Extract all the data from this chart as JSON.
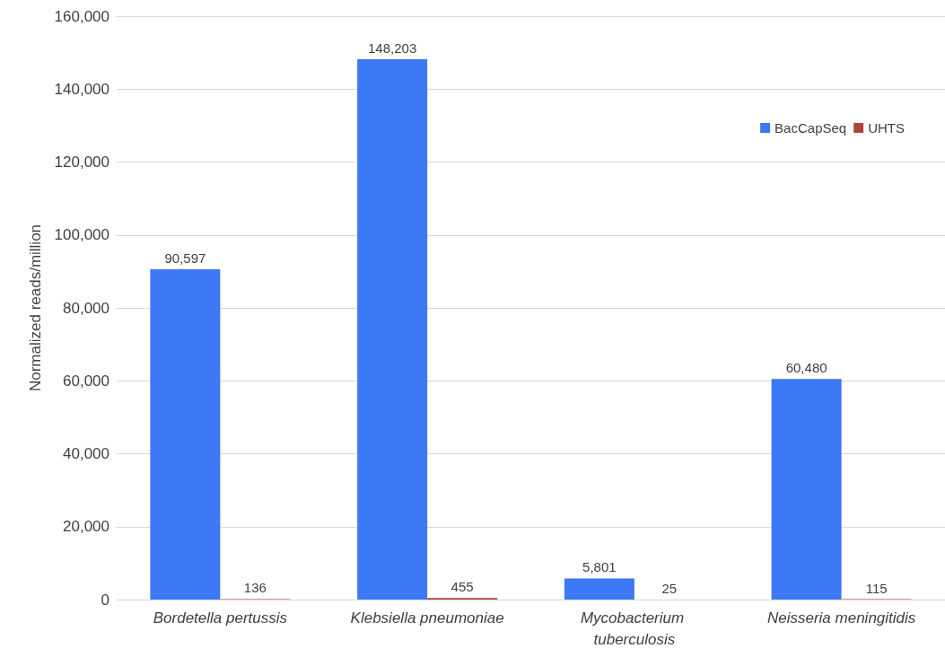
{
  "chart_data": {
    "type": "bar",
    "ylabel": "Normalized reads/million",
    "categories": [
      "Bordetella pertussis",
      "Klebsiella pneumoniae",
      "Mycobacterium tuberculosis",
      "Neisseria meningitidis"
    ],
    "series": [
      {
        "name": "BacCapSeq",
        "color": "#3d78f5",
        "values": [
          90597,
          148203,
          5801,
          60480
        ],
        "value_labels": [
          "90,597",
          "148,203",
          "5,801",
          "60,480"
        ]
      },
      {
        "name": "UHTS",
        "color": "#b0443a",
        "values": [
          136,
          455,
          25,
          115
        ],
        "value_labels": [
          "136",
          "455",
          "25",
          "115"
        ]
      }
    ],
    "ylim": [
      0,
      160000
    ],
    "yticks": [
      0,
      {
        "value": 20000,
        "label": "20,000"
      },
      {
        "value": 40000,
        "label": "40,000"
      },
      {
        "value": 60000,
        "label": "60,000"
      },
      {
        "value": 80000,
        "label": "80,000"
      },
      {
        "value": 100000,
        "label": "100,000"
      },
      {
        "value": 120000,
        "label": "120,000"
      },
      {
        "value": 140000,
        "label": "140,000"
      },
      {
        "value": 160000,
        "label": "160,000"
      }
    ],
    "grid": "y",
    "legend": "top right"
  }
}
